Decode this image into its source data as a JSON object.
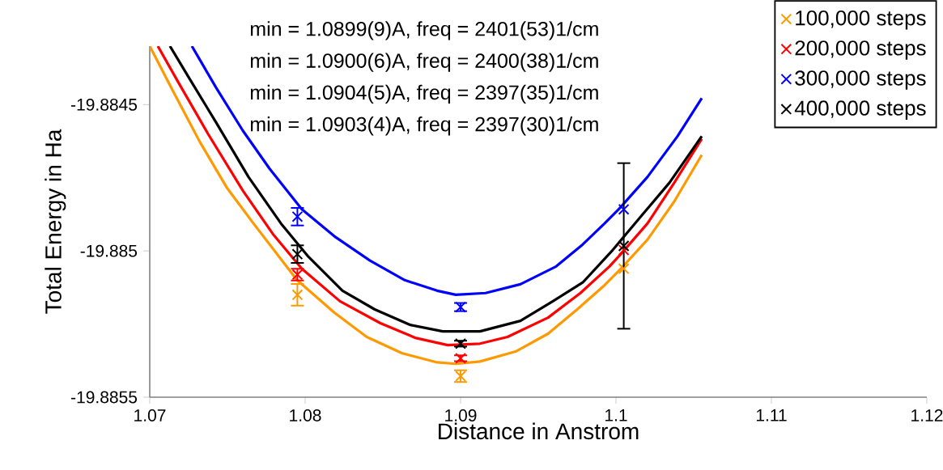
{
  "chart_data": {
    "type": "line",
    "xlabel": "Distance in Anstrom",
    "ylabel": "Total Energy in Ha",
    "xlim": [
      1.07,
      1.12
    ],
    "ylim": [
      -19.8855,
      -19.8843
    ],
    "xticks": [
      1.07,
      1.08,
      1.09,
      1.1,
      1.11,
      1.12
    ],
    "yticks": [
      -19.8855,
      -19.885,
      -19.8845
    ],
    "grid": false,
    "legend": "top right",
    "annotations": [
      "min = 1.0899(9)A, freq = 2401(53)1/cm",
      "min = 1.0900(6)A, freq = 2400(38)1/cm",
      "min = 1.0904(5)A, freq = 2397(35)1/cm",
      "min = 1.0903(4)A, freq = 2397(30)1/cm"
    ],
    "series": [
      {
        "color": "#ff9900",
        "marker": "none",
        "x": [
          1.07,
          1.07146,
          1.07323,
          1.07495,
          1.07667,
          1.07948,
          1.08188,
          1.08396,
          1.08625,
          1.08849,
          1.08969,
          1.09125,
          1.09354,
          1.09563,
          1.0975,
          1.09927,
          1.10031,
          1.10203,
          1.10375,
          1.10552
        ],
        "values": [
          -19.8843,
          -19.88445,
          -19.884628,
          -19.884783,
          -19.884906,
          -19.8851,
          -19.885211,
          -19.885294,
          -19.88535,
          -19.885381,
          -19.885386,
          -19.885378,
          -19.885344,
          -19.885283,
          -19.8852,
          -19.885117,
          -19.885061,
          -19.884961,
          -19.884831,
          -19.884672
        ]
      },
      {
        "color": "#ff0000",
        "marker": "none",
        "x": [
          1.07052,
          1.07182,
          1.07375,
          1.07599,
          1.07792,
          1.07979,
          1.08224,
          1.08484,
          1.08708,
          1.08917,
          1.09125,
          1.09302,
          1.09563,
          1.09771,
          1.09958,
          1.10031,
          1.10203,
          1.10375,
          1.10552
        ],
        "values": [
          -19.8843,
          -19.884422,
          -19.8846,
          -19.884794,
          -19.884942,
          -19.885061,
          -19.885172,
          -19.885247,
          -19.885297,
          -19.885322,
          -19.885317,
          -19.885294,
          -19.885228,
          -19.885144,
          -19.885053,
          -19.885011,
          -19.884906,
          -19.884767,
          -19.884617
        ]
      },
      {
        "color": "#0000ff",
        "marker": "none",
        "x": [
          1.07271,
          1.07427,
          1.07599,
          1.07771,
          1.07979,
          1.08188,
          1.08417,
          1.08641,
          1.08849,
          1.08969,
          1.09161,
          1.09385,
          1.09615,
          1.09786,
          1.09927,
          1.10031,
          1.10203,
          1.10396,
          1.10552
        ],
        "values": [
          -19.8843,
          -19.884442,
          -19.884589,
          -19.884719,
          -19.884858,
          -19.88495,
          -19.885033,
          -19.8851,
          -19.885136,
          -19.88515,
          -19.885144,
          -19.885114,
          -19.885053,
          -19.884978,
          -19.884906,
          -19.88485,
          -19.884747,
          -19.884608,
          -19.884478
        ]
      },
      {
        "color": "#000000",
        "marker": "none",
        "x": [
          1.0713,
          1.0725,
          1.07427,
          1.07635,
          1.07844,
          1.08016,
          1.0824,
          1.08448,
          1.08677,
          1.08885,
          1.09125,
          1.09385,
          1.09594,
          1.09786,
          1.09979,
          1.10167,
          1.10344,
          1.10552
        ],
        "values": [
          -19.8843,
          -19.884406,
          -19.884561,
          -19.884747,
          -19.884906,
          -19.885017,
          -19.885136,
          -19.8852,
          -19.885253,
          -19.885275,
          -19.885275,
          -19.885239,
          -19.885172,
          -19.885108,
          -19.884997,
          -19.884878,
          -19.884767,
          -19.884608
        ]
      },
      {
        "name": "100,000 steps",
        "type": "scatter",
        "color": "#ff9900",
        "marker": "cross",
        "x": [
          1.0795,
          1.09,
          1.1005
        ],
        "values": [
          -19.88515,
          -19.885428,
          -19.885061
        ],
        "errors": [
          3.7e-05,
          2e-05,
          null
        ]
      },
      {
        "name": "200,000 steps",
        "type": "scatter",
        "color": "#ff0000",
        "marker": "cross",
        "x": [
          1.0795,
          1.09,
          1.1005
        ],
        "values": [
          -19.885081,
          -19.885367,
          -19.884997
        ],
        "errors": [
          2e-05,
          1e-05,
          null
        ]
      },
      {
        "name": "300,000 steps",
        "type": "scatter",
        "color": "#0000ff",
        "marker": "cross",
        "x": [
          1.0795,
          1.09,
          1.1005
        ],
        "values": [
          -19.884883,
          -19.885192,
          -19.884858
        ],
        "errors": [
          3e-05,
          1.4e-05,
          null
        ]
      },
      {
        "name": "400,000 steps",
        "type": "scatter",
        "color": "#000000",
        "marker": "cross",
        "x": [
          1.0795,
          1.09,
          1.1005
        ],
        "values": [
          -19.885011,
          -19.885317,
          -19.884983
        ],
        "errors": [
          3e-05,
          1e-05,
          0.000283
        ]
      }
    ]
  }
}
